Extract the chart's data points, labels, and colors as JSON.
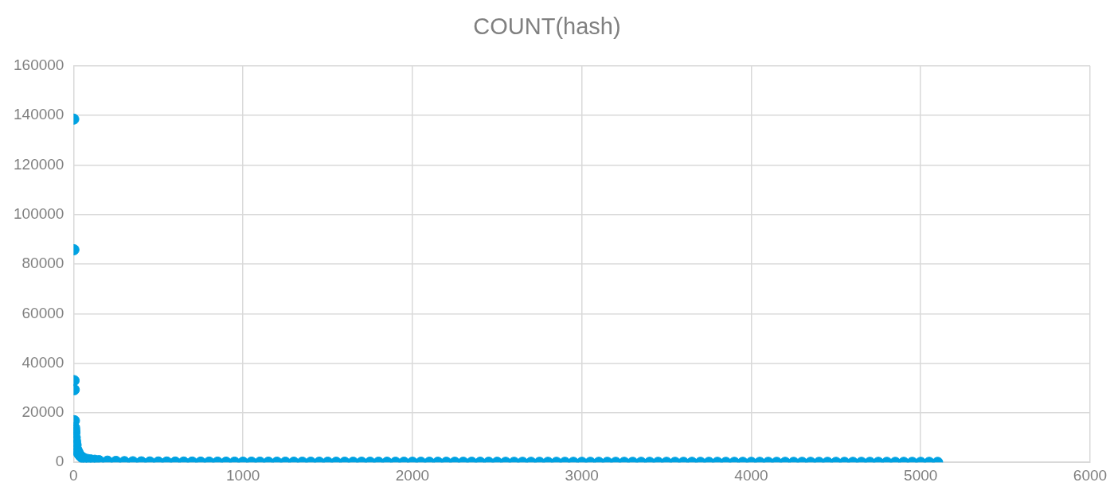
{
  "chart_data": {
    "type": "scatter",
    "title": "COUNT(hash)",
    "x": [
      1,
      2,
      3,
      4,
      5,
      6,
      7,
      8,
      10,
      12,
      15,
      20,
      25,
      30,
      40,
      50,
      60,
      80,
      100,
      125,
      150,
      200,
      250,
      300,
      350,
      400,
      450,
      500,
      550,
      600,
      650,
      700,
      750,
      800,
      850,
      900,
      950,
      1000,
      1050,
      1100,
      1150,
      1200,
      1250,
      1300,
      1350,
      1400,
      1450,
      1500,
      1550,
      1600,
      1650,
      1700,
      1750,
      1800,
      1850,
      1900,
      1950,
      2000,
      2050,
      2100,
      2150,
      2200,
      2250,
      2300,
      2350,
      2400,
      2450,
      2500,
      2550,
      2600,
      2650,
      2700,
      2750,
      2800,
      2850,
      2900,
      2950,
      3000,
      3050,
      3100,
      3150,
      3200,
      3250,
      3300,
      3350,
      3400,
      3450,
      3500,
      3550,
      3600,
      3650,
      3700,
      3750,
      3800,
      3850,
      3900,
      3950,
      4000,
      4050,
      4100,
      4150,
      4200,
      4250,
      4300,
      4350,
      4400,
      4450,
      4500,
      4550,
      4600,
      4650,
      4700,
      4750,
      4800,
      4850,
      4900,
      4950,
      5000,
      5050,
      5100
    ],
    "values": [
      138500,
      85800,
      33000,
      29300,
      16800,
      14000,
      13000,
      12000,
      10000,
      8500,
      7000,
      5000,
      4200,
      3500,
      2600,
      2000,
      1600,
      1200,
      1000,
      850,
      700,
      500,
      400,
      300,
      250,
      200,
      170,
      150,
      140,
      130,
      120,
      110,
      100,
      95,
      90,
      85,
      80,
      75,
      72,
      69,
      66,
      63,
      60,
      58,
      56,
      54,
      52,
      50,
      48,
      47,
      46,
      45,
      44,
      42,
      40,
      38,
      37,
      35,
      34,
      33,
      32,
      31,
      30,
      29,
      28,
      27,
      26,
      25,
      24,
      23,
      22,
      21,
      20,
      19,
      18,
      17,
      16,
      15,
      14,
      14,
      13,
      13,
      12,
      12,
      11,
      11,
      10,
      10,
      9,
      9,
      8,
      8,
      7,
      7,
      6,
      6,
      5,
      5,
      5,
      4,
      4,
      4,
      4,
      3,
      3,
      3,
      3,
      3,
      2,
      2,
      2,
      2,
      2,
      2,
      2,
      2,
      1,
      1,
      1,
      1
    ],
    "color": "#00a2e2",
    "marker": "circle",
    "xlim": [
      0,
      6000
    ],
    "xticks": [
      0,
      1000,
      2000,
      3000,
      4000,
      5000,
      6000
    ],
    "ylim": [
      0,
      160000
    ],
    "yticks": [
      0,
      20000,
      40000,
      60000,
      80000,
      100000,
      120000,
      140000,
      160000
    ],
    "grid": true
  }
}
